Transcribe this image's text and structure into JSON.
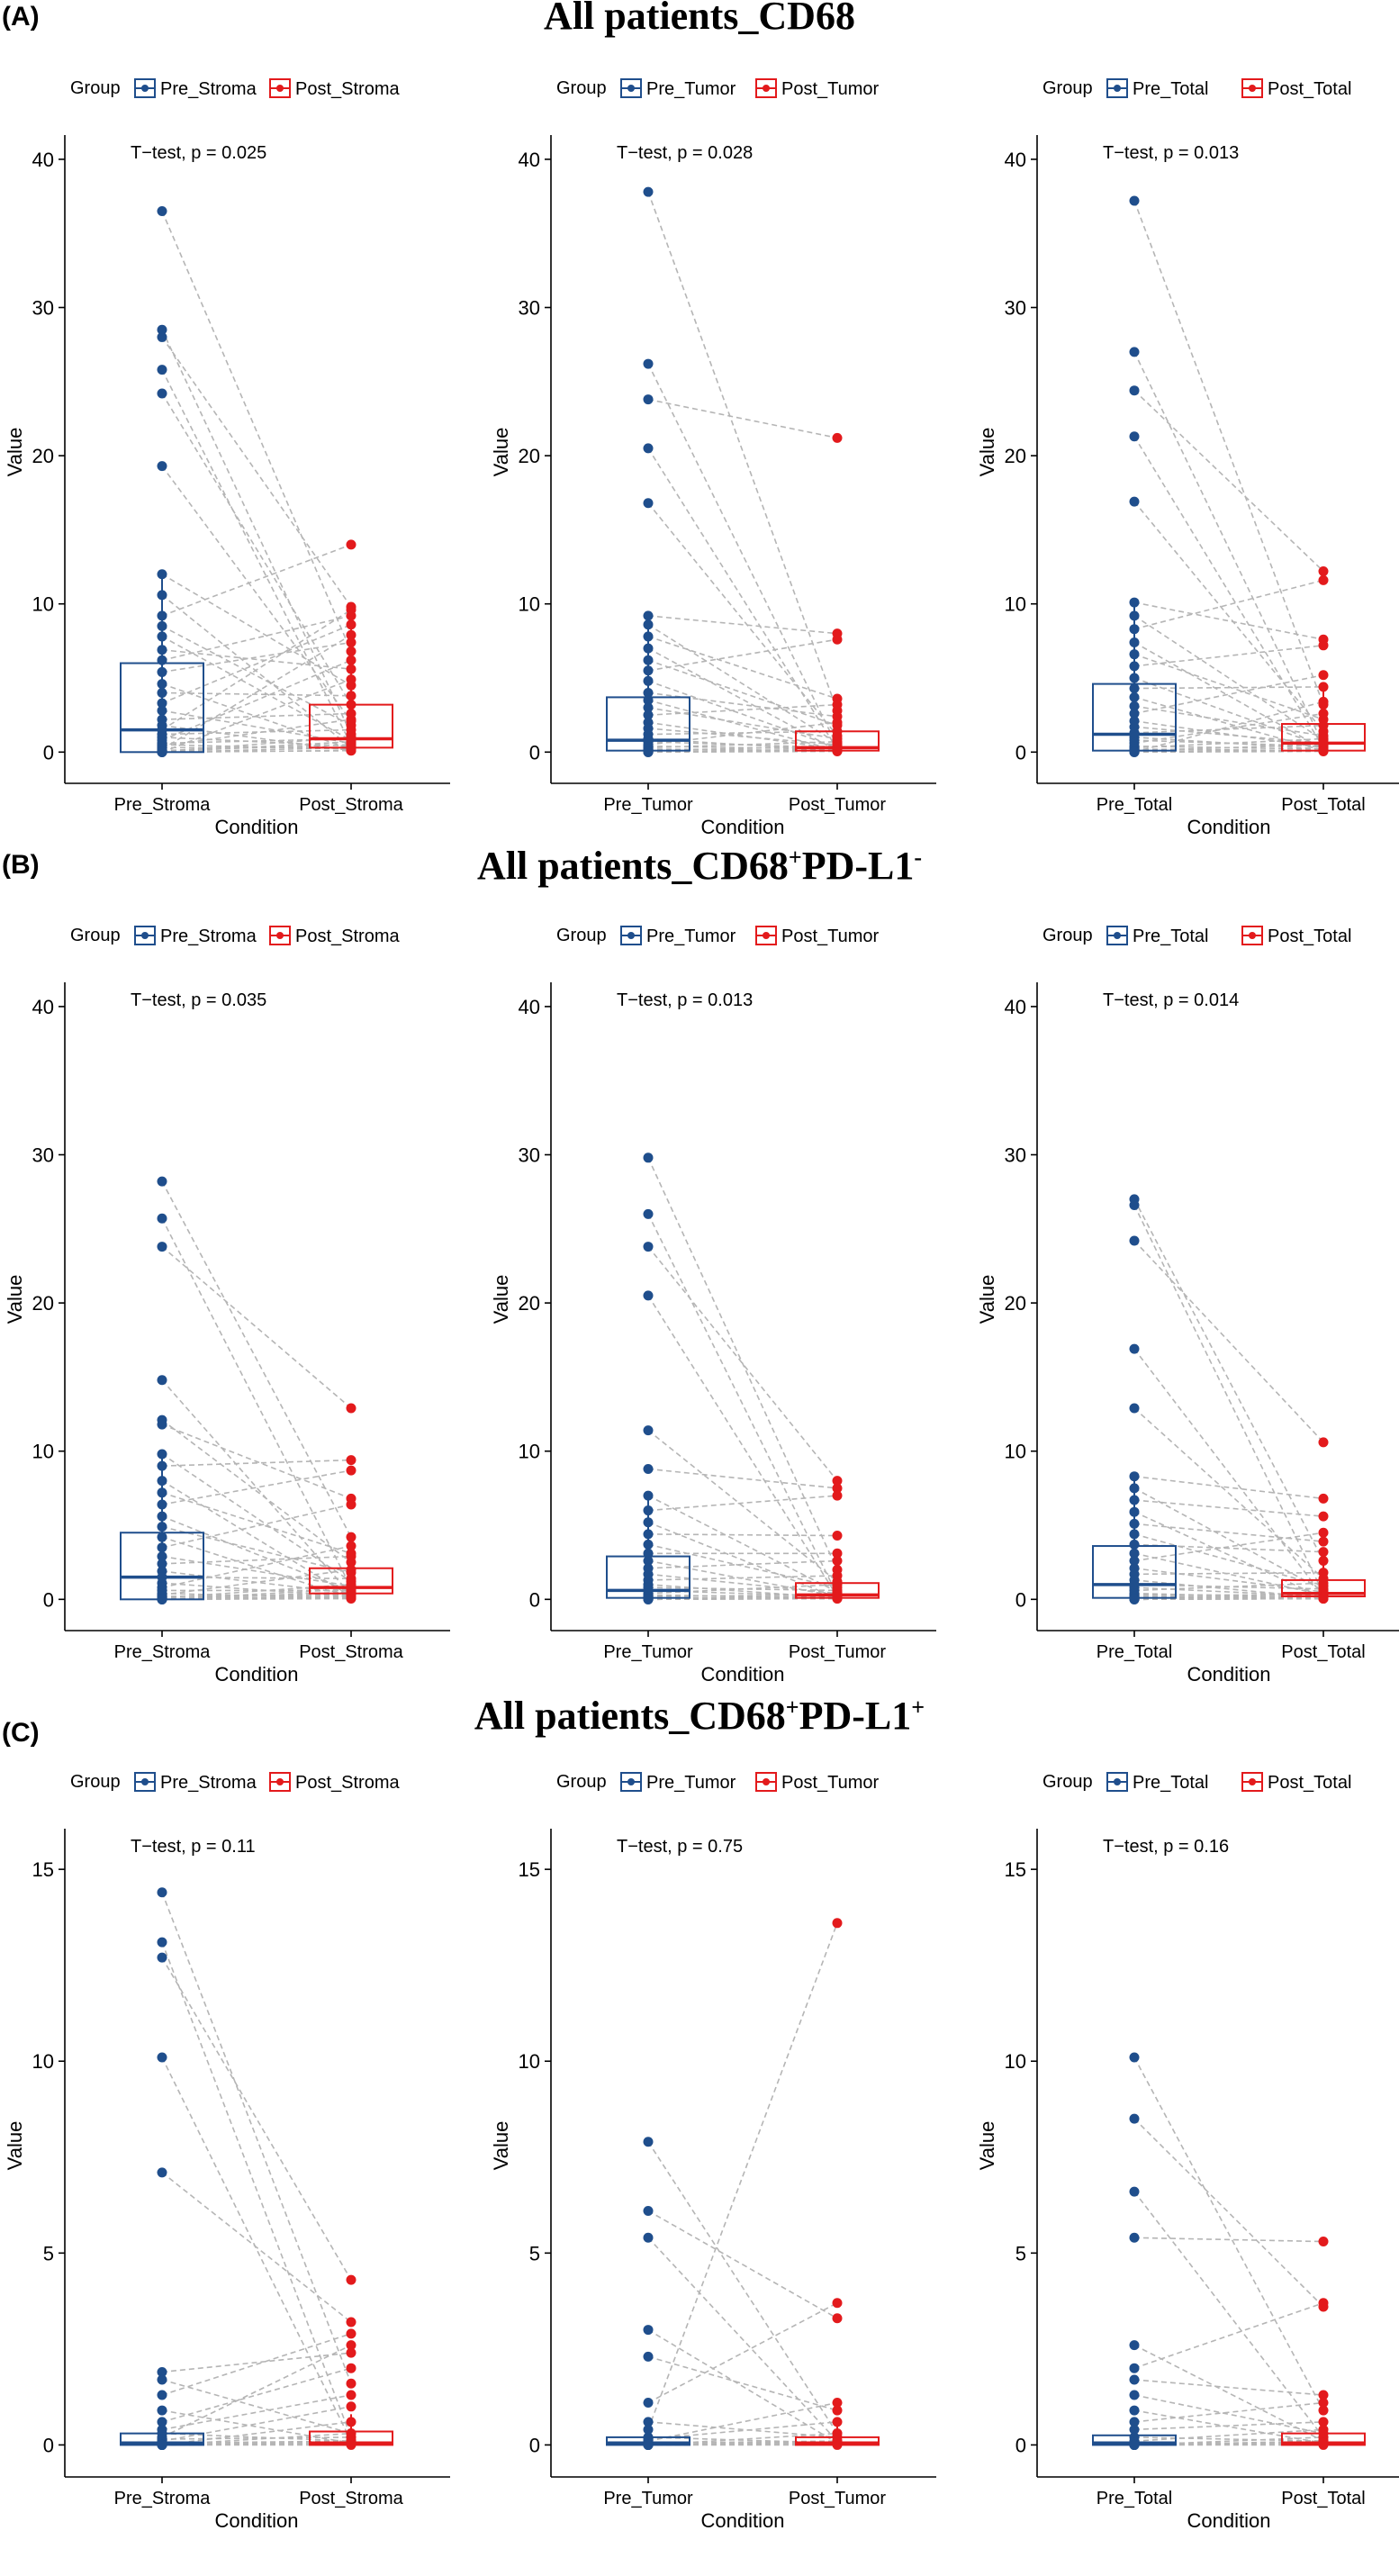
{
  "sections": [
    {
      "tag": "(A)",
      "title_main": "All patients_CD68",
      "title_sup1": "",
      "title_mid": "",
      "title_sup2": ""
    },
    {
      "tag": "(B)",
      "title_main": "All patients_CD68",
      "title_sup1": "+",
      "title_mid": "PD-L1",
      "title_sup2": "-"
    },
    {
      "tag": "(C)",
      "title_main": "All patients_CD68",
      "title_sup1": "+",
      "title_mid": "PD-L1",
      "title_sup2": "+"
    }
  ],
  "colors": {
    "pre": "#1f4e8c",
    "post": "#e31a1c",
    "line": "#b5b5b5"
  },
  "chart_data": [
    {
      "type": "box",
      "section": 0,
      "legend_title": "Group",
      "categories": [
        "Pre_Stroma",
        "Post_Stroma"
      ],
      "xlabel": "Condition",
      "ylabel": "Value",
      "annotation": "T−test, p = 0.025",
      "ylim": [
        -1.5,
        42
      ],
      "yticks": [
        0,
        10,
        20,
        30,
        40
      ],
      "boxes": [
        {
          "q1": 0,
          "median": 1.5,
          "q3": 6,
          "whisker_low": 0,
          "whisker_high": 12
        },
        {
          "q1": 0.3,
          "median": 0.9,
          "q3": 3.2,
          "whisker_low": 0,
          "whisker_high": 9.6
        }
      ],
      "pre_values": [
        36.5,
        28.5,
        28,
        25.8,
        24.2,
        19.3,
        12,
        10.6,
        9.2,
        8.5,
        7.8,
        6.9,
        6.2,
        5.4,
        4.6,
        4.0,
        3.3,
        2.8,
        2.2,
        1.8,
        1.5,
        1.2,
        1.0,
        0.8,
        0.6,
        0.5,
        0.4,
        0.3,
        0.2,
        0.1,
        0.05,
        0,
        0,
        0,
        0,
        0
      ],
      "post_values": [
        6.8,
        1.2,
        9.8,
        0.5,
        3.2,
        2.1,
        4.5,
        0.3,
        14.0,
        1.8,
        0.8,
        5.6,
        9.2,
        7.4,
        0.2,
        3.8,
        8.6,
        0.6,
        2.6,
        0.1,
        9.6,
        1.5,
        0.4,
        6.2,
        0.9,
        0.2,
        2.2,
        0.3,
        7.9,
        0.5,
        1.0,
        0.1,
        4.9,
        0.7,
        0.3,
        0.1
      ]
    },
    {
      "type": "box",
      "section": 0,
      "legend_title": "Group",
      "categories": [
        "Pre_Tumor",
        "Post_Tumor"
      ],
      "xlabel": "Condition",
      "ylabel": "Value",
      "annotation": "T−test, p = 0.028",
      "ylim": [
        -1.5,
        42
      ],
      "yticks": [
        0,
        10,
        20,
        30,
        40
      ],
      "boxes": [
        {
          "q1": 0.1,
          "median": 0.8,
          "q3": 3.7,
          "whisker_low": 0,
          "whisker_high": 9.2
        },
        {
          "q1": 0.1,
          "median": 0.3,
          "q3": 1.4,
          "whisker_low": 0,
          "whisker_high": 3.6
        }
      ],
      "pre_values": [
        37.8,
        26.2,
        23.8,
        20.5,
        16.8,
        9.2,
        8.6,
        7.8,
        7.0,
        6.2,
        5.5,
        4.8,
        4.0,
        3.5,
        3.0,
        2.5,
        2.0,
        1.6,
        1.2,
        0.9,
        0.7,
        0.5,
        0.4,
        0.3,
        0.2,
        0.1,
        0.05,
        0,
        0,
        0
      ],
      "post_values": [
        2.8,
        0.4,
        21.2,
        0.2,
        1.1,
        8.0,
        0.6,
        3.6,
        0.1,
        1.8,
        7.6,
        0.3,
        2.4,
        0.1,
        0.9,
        3.2,
        0.2,
        0.5,
        1.4,
        0.1,
        0.3,
        2.0,
        0.2,
        0.7,
        0.1,
        0.4,
        0.1,
        0.2,
        0.1,
        0.05
      ]
    },
    {
      "type": "box",
      "section": 0,
      "legend_title": "Group",
      "categories": [
        "Pre_Total",
        "Post_Total"
      ],
      "xlabel": "Condition",
      "ylabel": "Value",
      "annotation": "T−test, p = 0.013",
      "ylim": [
        -1.5,
        42
      ],
      "yticks": [
        0,
        10,
        20,
        30,
        40
      ],
      "boxes": [
        {
          "q1": 0.1,
          "median": 1.2,
          "q3": 4.6,
          "whisker_low": 0,
          "whisker_high": 10
        },
        {
          "q1": 0.1,
          "median": 0.6,
          "q3": 1.9,
          "whisker_low": 0,
          "whisker_high": 4.5
        }
      ],
      "pre_values": [
        37.2,
        27.0,
        24.4,
        21.3,
        16.9,
        10.1,
        9.2,
        8.3,
        7.4,
        6.6,
        5.8,
        5.0,
        4.3,
        3.7,
        3.1,
        2.6,
        2.1,
        1.7,
        1.3,
        1.0,
        0.8,
        0.6,
        0.4,
        0.3,
        0.2,
        0.1,
        0.05,
        0,
        0,
        0
      ],
      "post_values": [
        3.2,
        0.5,
        12.2,
        0.3,
        1.4,
        7.6,
        0.8,
        11.6,
        0.2,
        2.2,
        7.2,
        0.4,
        4.4,
        0.1,
        1.1,
        5.2,
        0.3,
        0.6,
        1.8,
        0.2,
        0.4,
        2.6,
        0.2,
        0.9,
        0.1,
        0.5,
        0.1,
        3.4,
        0.1,
        0.05
      ]
    },
    {
      "type": "box",
      "section": 1,
      "legend_title": "Group",
      "categories": [
        "Pre_Stroma",
        "Post_Stroma"
      ],
      "xlabel": "Condition",
      "ylabel": "Value",
      "annotation": "T−test, p = 0.035",
      "ylim": [
        -1.5,
        42
      ],
      "yticks": [
        0,
        10,
        20,
        30,
        40
      ],
      "boxes": [
        {
          "q1": 0,
          "median": 1.5,
          "q3": 4.5,
          "whisker_low": 0,
          "whisker_high": 9.8
        },
        {
          "q1": 0.4,
          "median": 0.8,
          "q3": 2.1,
          "whisker_low": 0,
          "whisker_high": 4.2
        }
      ],
      "pre_values": [
        28.2,
        25.7,
        23.8,
        14.8,
        12.1,
        11.8,
        9.8,
        9.0,
        8.0,
        7.2,
        6.4,
        5.6,
        4.9,
        4.2,
        3.5,
        2.9,
        2.4,
        1.9,
        1.5,
        1.1,
        0.8,
        0.6,
        0.4,
        0.3,
        0.2,
        0.1,
        0.05,
        0,
        0,
        0,
        0,
        0
      ],
      "post_values": [
        4.2,
        0.8,
        12.9,
        0.3,
        2.5,
        6.8,
        1.2,
        9.4,
        0.2,
        3.1,
        8.7,
        0.5,
        1.8,
        0.1,
        6.4,
        0.9,
        2.9,
        0.4,
        1.4,
        0.2,
        3.6,
        0.6,
        0.1,
        2.0,
        0.3,
        1.0,
        0.2,
        0.7,
        0.1,
        0.5,
        0.2,
        0.05
      ]
    },
    {
      "type": "box",
      "section": 1,
      "legend_title": "Group",
      "categories": [
        "Pre_Tumor",
        "Post_Tumor"
      ],
      "xlabel": "Condition",
      "ylabel": "Value",
      "annotation": "T−test, p = 0.013",
      "ylim": [
        -1.5,
        42
      ],
      "yticks": [
        0,
        10,
        20,
        30,
        40
      ],
      "boxes": [
        {
          "q1": 0.1,
          "median": 0.6,
          "q3": 2.9,
          "whisker_low": 0,
          "whisker_high": 7
        },
        {
          "q1": 0.1,
          "median": 0.3,
          "q3": 1.1,
          "whisker_low": 0,
          "whisker_high": 2.6
        }
      ],
      "pre_values": [
        29.8,
        26.0,
        23.8,
        20.5,
        11.4,
        8.8,
        7.0,
        6.0,
        5.2,
        4.4,
        3.7,
        3.1,
        2.6,
        2.1,
        1.7,
        1.3,
        1.0,
        0.8,
        0.6,
        0.4,
        0.3,
        0.2,
        0.1,
        0.05,
        0,
        0,
        0
      ],
      "post_values": [
        2.0,
        0.3,
        8.0,
        0.2,
        1.2,
        7.5,
        0.5,
        7.0,
        0.1,
        4.3,
        0.8,
        3.1,
        0.2,
        2.6,
        0.4,
        1.6,
        0.1,
        0.6,
        0.2,
        1.0,
        0.1,
        0.3,
        0.1,
        0.2,
        0.1,
        0.05,
        0.05
      ]
    },
    {
      "type": "box",
      "section": 1,
      "legend_title": "Group",
      "categories": [
        "Pre_Total",
        "Post_Total"
      ],
      "xlabel": "Condition",
      "ylabel": "Value",
      "annotation": "T−test, p = 0.014",
      "ylim": [
        -1.5,
        42
      ],
      "yticks": [
        0,
        10,
        20,
        30,
        40
      ],
      "boxes": [
        {
          "q1": 0.1,
          "median": 1.0,
          "q3": 3.6,
          "whisker_low": 0,
          "whisker_high": 8.3
        },
        {
          "q1": 0.2,
          "median": 0.4,
          "q3": 1.3,
          "whisker_low": 0,
          "whisker_high": 3.1
        }
      ],
      "pre_values": [
        27.0,
        26.6,
        24.2,
        16.9,
        12.9,
        8.3,
        7.5,
        6.7,
        5.9,
        5.1,
        4.4,
        3.7,
        3.1,
        2.6,
        2.1,
        1.7,
        1.3,
        1.0,
        0.8,
        0.6,
        0.4,
        0.3,
        0.2,
        0.1,
        0.05,
        0,
        0,
        0
      ],
      "post_values": [
        2.6,
        0.4,
        10.6,
        0.2,
        1.4,
        6.8,
        0.6,
        5.6,
        0.1,
        3.9,
        0.9,
        3.2,
        0.3,
        4.5,
        0.5,
        1.8,
        0.1,
        0.7,
        0.2,
        1.1,
        0.1,
        0.3,
        0.2,
        0.2,
        0.1,
        0.05,
        0.05,
        0.05
      ]
    },
    {
      "type": "box",
      "section": 2,
      "legend_title": "Group",
      "categories": [
        "Pre_Stroma",
        "Post_Stroma"
      ],
      "xlabel": "Condition",
      "ylabel": "Value",
      "annotation": "T−test, p = 0.11",
      "ylim": [
        -0.6,
        16.2
      ],
      "yticks": [
        0,
        5,
        10,
        15
      ],
      "boxes": [
        {
          "q1": 0,
          "median": 0.05,
          "q3": 0.3,
          "whisker_low": 0,
          "whisker_high": 0.6
        },
        {
          "q1": 0,
          "median": 0.05,
          "q3": 0.35,
          "whisker_low": 0,
          "whisker_high": 0.8
        }
      ],
      "pre_values": [
        14.4,
        13.1,
        12.7,
        10.1,
        7.1,
        1.9,
        1.7,
        1.3,
        0.9,
        0.6,
        0.4,
        0.3,
        0.2,
        0.15,
        0.1,
        0.05,
        0,
        0,
        0,
        0,
        0,
        0
      ],
      "post_values": [
        1.6,
        0.2,
        4.3,
        0.1,
        3.2,
        2.4,
        0.3,
        2.9,
        0.05,
        2.0,
        1.3,
        0.1,
        2.6,
        0.2,
        1.0,
        0.1,
        0.6,
        0.05,
        0.3,
        0.1,
        0.05,
        0
      ]
    },
    {
      "type": "box",
      "section": 2,
      "legend_title": "Group",
      "categories": [
        "Pre_Tumor",
        "Post_Tumor"
      ],
      "xlabel": "Condition",
      "ylabel": "Value",
      "annotation": "T−test, p = 0.75",
      "ylim": [
        -0.6,
        16.2
      ],
      "yticks": [
        0,
        5,
        10,
        15
      ],
      "boxes": [
        {
          "q1": 0,
          "median": 0.05,
          "q3": 0.2,
          "whisker_low": 0,
          "whisker_high": 0.4
        },
        {
          "q1": 0,
          "median": 0.05,
          "q3": 0.2,
          "whisker_low": 0,
          "whisker_high": 0.5
        }
      ],
      "pre_values": [
        7.9,
        6.1,
        5.4,
        3.0,
        2.3,
        1.1,
        0.6,
        0.4,
        0.2,
        0.15,
        0.1,
        0.05,
        0,
        0,
        0,
        0,
        0
      ],
      "post_values": [
        0.3,
        3.3,
        0.1,
        0.05,
        0.9,
        3.7,
        0.2,
        13.6,
        0.05,
        0.6,
        1.1,
        0.1,
        0.3,
        0.05,
        0.1,
        0,
        0.05
      ]
    },
    {
      "type": "box",
      "section": 2,
      "legend_title": "Group",
      "categories": [
        "Pre_Total",
        "Post_Total"
      ],
      "xlabel": "Condition",
      "ylabel": "Value",
      "annotation": "T−test, p = 0.16",
      "ylim": [
        -0.6,
        16.2
      ],
      "yticks": [
        0,
        5,
        10,
        15
      ],
      "boxes": [
        {
          "q1": 0,
          "median": 0.05,
          "q3": 0.25,
          "whisker_low": 0,
          "whisker_high": 0.5
        },
        {
          "q1": 0,
          "median": 0.05,
          "q3": 0.3,
          "whisker_low": 0,
          "whisker_high": 0.7
        }
      ],
      "pre_values": [
        10.1,
        8.5,
        6.6,
        5.4,
        2.6,
        2.0,
        1.7,
        1.3,
        0.9,
        0.6,
        0.4,
        0.2,
        0.1,
        0.05,
        0,
        0,
        0,
        0,
        0
      ],
      "post_values": [
        0.9,
        3.6,
        0.2,
        5.3,
        0.1,
        3.7,
        1.3,
        0.3,
        0.05,
        1.1,
        0.6,
        0.1,
        0.4,
        0.05,
        0.2,
        0.1,
        0.05,
        0,
        0.05
      ]
    }
  ]
}
